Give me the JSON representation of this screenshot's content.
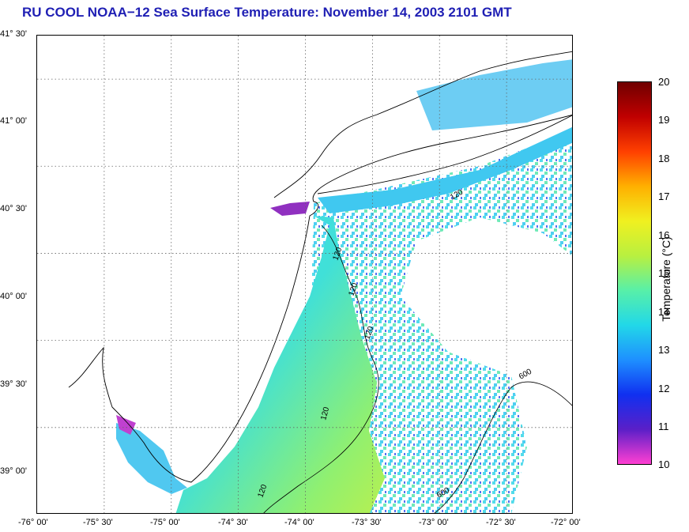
{
  "title": "RU COOL  NOAA−12  Sea Surface Temperature:  November 14, 2003 2101 GMT",
  "map": {
    "lat_labels": [
      "41° 30'",
      "41° 00'",
      "40° 30'",
      "40° 00'",
      "39° 30'",
      "39° 00'"
    ],
    "lon_labels": [
      "-76° 00'",
      "-75° 30'",
      "-75° 00'",
      "-74° 30'",
      "-74° 00'",
      "-73° 30'",
      "-73° 00'",
      "-72° 30'",
      "-72° 00'"
    ],
    "lat_range": [
      38.75,
      41.5
    ],
    "lon_range": [
      -76.0,
      -72.0
    ],
    "grid": "dotted",
    "isobath_labels": [
      "120",
      "120",
      "120",
      "120",
      "120",
      "120",
      "600",
      "600"
    ]
  },
  "colorbar": {
    "label": "Temperature (°C)",
    "ticks": [
      "20",
      "19",
      "18",
      "17",
      "16",
      "15",
      "14",
      "13",
      "12",
      "11",
      "10"
    ],
    "range": [
      10,
      20
    ],
    "colors": [
      "#ff3fd2",
      "#5a1fc8",
      "#1030f0",
      "#1e90ff",
      "#22d8e8",
      "#58f0a8",
      "#b8f040",
      "#f0f020",
      "#ffb000",
      "#ff4000",
      "#c00000",
      "#700000"
    ]
  }
}
